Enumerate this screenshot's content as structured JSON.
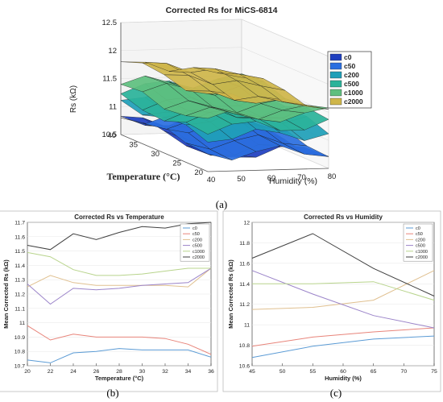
{
  "panels": {
    "a": "(a)",
    "b": "(b)",
    "c": "(c)"
  },
  "chart_data": [
    {
      "type": "surface",
      "title": "Corrected Rs for MiCS-6814",
      "xlabel": "Humidity (%)",
      "ylabel": "Temperature (°C)",
      "zlabel": "Rs (kΩ)",
      "x_ticks": [
        "40",
        "50",
        "60",
        "70",
        "80"
      ],
      "y_ticks": [
        "20",
        "25",
        "30",
        "35",
        "40"
      ],
      "z_ticks": [
        "10.5",
        "11",
        "11.5",
        "12",
        "12.5"
      ],
      "zlim": [
        10.5,
        12.5
      ],
      "legend_position": "right",
      "series": [
        {
          "name": "c0",
          "color": "#1f3fbf",
          "level": 10.78
        },
        {
          "name": "c50",
          "color": "#2b6fe0",
          "level": 10.88
        },
        {
          "name": "c200",
          "color": "#1f9fb8",
          "level": 11.2
        },
        {
          "name": "c500",
          "color": "#2bb39a",
          "level": 11.25
        },
        {
          "name": "c1000",
          "color": "#5fbf7f",
          "level": 11.38
        },
        {
          "name": "c2000",
          "color": "#cfb64a",
          "level": 11.6
        }
      ]
    },
    {
      "type": "line",
      "title": "Corrected Rs vs Temperature",
      "xlabel": "Temperature (°C)",
      "ylabel": "Mean Corrected Rs (kΩ)",
      "xlim": [
        20,
        36
      ],
      "ylim": [
        10.7,
        11.7
      ],
      "x_ticks": [
        20,
        22,
        24,
        26,
        28,
        30,
        32,
        34,
        36
      ],
      "y_ticks": [
        "10.7",
        "10.8",
        "10.9",
        "11",
        "11.1",
        "11.2",
        "11.3",
        "11.4",
        "11.5",
        "11.6",
        "11.7"
      ],
      "x": [
        20,
        22,
        24,
        26,
        28,
        30,
        32,
        34,
        36
      ],
      "legend_position": "top-right",
      "series": [
        {
          "name": "c0",
          "color": "#5b9bd5",
          "values": [
            10.74,
            10.72,
            10.79,
            10.8,
            10.82,
            10.81,
            10.81,
            10.81,
            10.76
          ]
        },
        {
          "name": "c50",
          "color": "#e8847a",
          "values": [
            10.98,
            10.88,
            10.92,
            10.9,
            10.9,
            10.9,
            10.89,
            10.85,
            10.78
          ]
        },
        {
          "name": "c200",
          "color": "#e0c090",
          "values": [
            11.25,
            11.33,
            11.28,
            11.26,
            11.26,
            11.26,
            11.26,
            11.25,
            11.38
          ]
        },
        {
          "name": "c500",
          "color": "#9b84c9",
          "values": [
            11.27,
            11.13,
            11.24,
            11.23,
            11.24,
            11.26,
            11.27,
            11.28,
            11.38
          ]
        },
        {
          "name": "c1000",
          "color": "#b8d48c",
          "values": [
            11.49,
            11.46,
            11.37,
            11.33,
            11.33,
            11.34,
            11.36,
            11.38,
            11.38
          ]
        },
        {
          "name": "c2000",
          "color": "#404040",
          "values": [
            11.54,
            11.51,
            11.62,
            11.58,
            11.63,
            11.67,
            11.66,
            11.69,
            11.7
          ]
        }
      ]
    },
    {
      "type": "line",
      "title": "Corrected Rs vs Humidity",
      "xlabel": "Humidity (%)",
      "ylabel": "Mean Corrected Rs (kΩ)",
      "xlim": [
        45,
        75
      ],
      "ylim": [
        10.6,
        12
      ],
      "x_ticks": [
        45,
        50,
        55,
        60,
        65,
        70,
        75
      ],
      "y_ticks": [
        "10.6",
        "10.8",
        "11",
        "11.2",
        "11.4",
        "11.6",
        "11.8",
        "12"
      ],
      "x": [
        45,
        55,
        65,
        75
      ],
      "legend_position": "top-right",
      "series": [
        {
          "name": "c0",
          "color": "#5b9bd5",
          "values": [
            10.68,
            10.79,
            10.86,
            10.89
          ]
        },
        {
          "name": "c50",
          "color": "#e8847a",
          "values": [
            10.79,
            10.88,
            10.93,
            10.97
          ]
        },
        {
          "name": "c200",
          "color": "#e0c090",
          "values": [
            11.15,
            11.17,
            11.24,
            11.53
          ]
        },
        {
          "name": "c500",
          "color": "#9b84c9",
          "values": [
            11.53,
            11.3,
            11.09,
            10.97
          ]
        },
        {
          "name": "c1000",
          "color": "#b8d48c",
          "values": [
            11.4,
            11.4,
            11.42,
            11.24
          ]
        },
        {
          "name": "c2000",
          "color": "#404040",
          "values": [
            11.65,
            11.89,
            11.55,
            11.28
          ]
        }
      ]
    }
  ]
}
